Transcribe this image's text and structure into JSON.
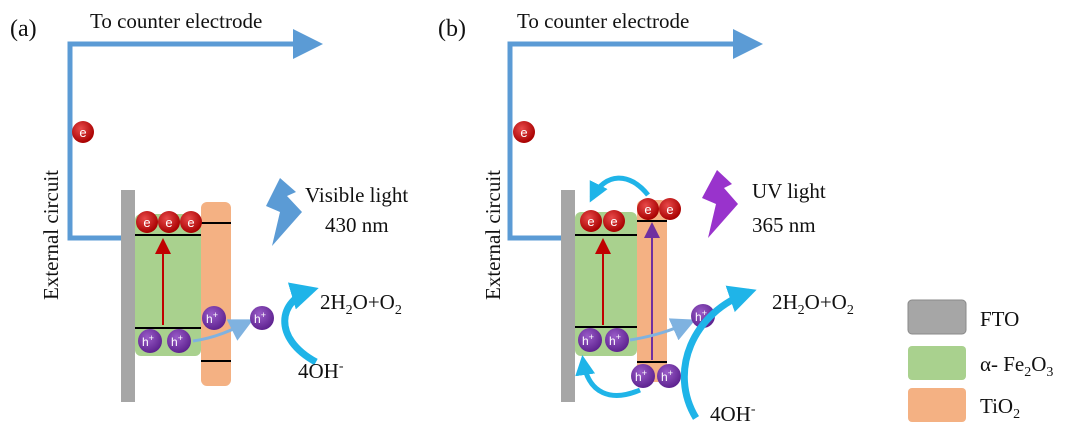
{
  "panel_a": {
    "tag": "(a)",
    "top_label": "To counter electrode",
    "side_label": "External circuit",
    "light_label_1": "Visible light",
    "light_label_2": "430 nm",
    "electron": "e",
    "hole": "h",
    "hole_sup": "+",
    "product": "2H",
    "product_sub1": "2",
    "product_mid": "O+O",
    "product_sub2": "2",
    "reactant": "4OH",
    "reactant_sup": "-"
  },
  "panel_b": {
    "tag": "(b)",
    "top_label": "To counter electrode",
    "side_label": "External circuit",
    "light_label_1": "UV light",
    "light_label_2": "365 nm",
    "electron": "e",
    "hole": "h",
    "hole_sup": "+",
    "product": "2H",
    "product_sub1": "2",
    "product_mid": "O+O",
    "product_sub2": "2",
    "reactant": "4OH",
    "reactant_sup": "-"
  },
  "legend": {
    "fto": "FTO",
    "fe2o3_prefix": "α- Fe",
    "fe2o3_sub1": "2",
    "fe2o3_o": "O",
    "fe2o3_sub2": "3",
    "tio2_prefix": "TiO",
    "tio2_sub": "2"
  },
  "colors": {
    "circuit": "#5b9bd5",
    "fto": "#a6a6a6",
    "fe2o3": "#a9d18e",
    "tio2": "#f4b183",
    "electron": "#c00000",
    "hole": "#7030a0",
    "visible_bolt": "#5b9bd5",
    "uv_bolt": "#9933cc",
    "flow_arrow": "#1fb4e8"
  }
}
